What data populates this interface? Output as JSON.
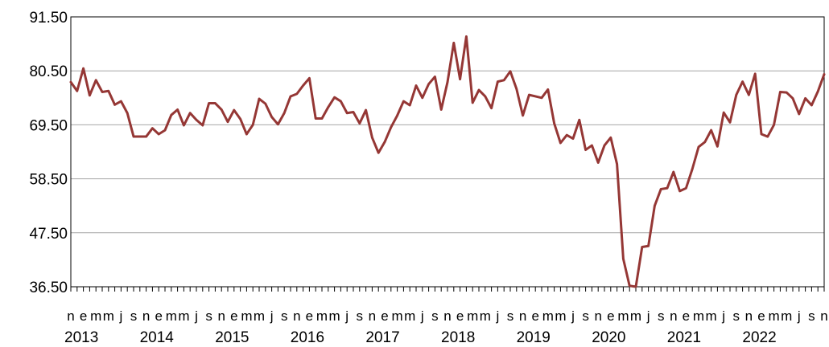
{
  "chart_data": {
    "type": "line",
    "title": "",
    "xlabel": "",
    "ylabel": "",
    "ylim": [
      36.5,
      91.5
    ],
    "y_ticks": [
      "36.50",
      "47.50",
      "58.50",
      "69.50",
      "80.50",
      "91.50"
    ],
    "grid": "horizontal",
    "legend": "none",
    "x_month_labels": [
      "n",
      "e",
      "m",
      "m",
      "j",
      "s",
      "n",
      "e",
      "m",
      "m",
      "j",
      "s",
      "n",
      "e",
      "m",
      "m",
      "j",
      "s",
      "n",
      "e",
      "m",
      "m",
      "j",
      "s",
      "n",
      "e",
      "m",
      "m",
      "j",
      "s",
      "n",
      "e",
      "m",
      "m",
      "j",
      "s",
      "n",
      "e",
      "m",
      "m",
      "j",
      "s",
      "n",
      "e",
      "m",
      "m",
      "j",
      "s",
      "n",
      "e",
      "m",
      "m",
      "j",
      "s",
      "n",
      "e",
      "m",
      "m",
      "j",
      "s",
      "n"
    ],
    "x_year_labels": [
      "2013",
      "2014",
      "2015",
      "2016",
      "2017",
      "2018",
      "2019",
      "2020",
      "2021",
      "2022"
    ],
    "x_start": "2012-11",
    "x_end": "2022-11",
    "series": [
      {
        "name": "",
        "color": "#953735",
        "values": [
          78.2,
          76.4,
          81.0,
          75.5,
          78.6,
          76.2,
          76.4,
          73.6,
          74.3,
          71.9,
          67.1,
          67.1,
          67.1,
          68.8,
          67.6,
          68.4,
          71.5,
          72.6,
          69.4,
          71.9,
          70.5,
          69.4,
          73.9,
          73.9,
          72.6,
          70.1,
          72.5,
          70.7,
          67.6,
          69.5,
          74.8,
          73.8,
          71.1,
          69.6,
          71.9,
          75.3,
          75.8,
          77.5,
          79.0,
          70.8,
          70.8,
          73.1,
          75.1,
          74.3,
          71.9,
          72.1,
          69.8,
          72.5,
          66.9,
          63.8,
          66.0,
          69.0,
          71.4,
          74.3,
          73.5,
          77.5,
          75.0,
          77.8,
          79.3,
          72.6,
          78.2,
          86.2,
          78.8,
          87.5,
          74.0,
          76.6,
          75.3,
          72.9,
          78.3,
          78.6,
          80.4,
          76.8,
          71.4,
          75.6,
          75.3,
          75.0,
          76.7,
          69.8,
          65.8,
          67.4,
          66.7,
          70.5,
          64.4,
          65.3,
          61.8,
          65.3,
          66.9,
          61.5,
          42.2,
          36.7,
          36.5,
          44.6,
          44.8,
          53.0,
          56.4,
          56.6,
          59.9,
          56.0,
          56.6,
          60.5,
          65.0,
          66.0,
          68.4,
          65.1,
          72.0,
          70.0,
          75.6,
          78.3,
          75.6,
          79.9,
          67.6,
          67.1,
          69.5,
          76.2,
          76.1,
          74.9,
          71.7,
          74.9,
          73.5,
          76.3,
          79.8
        ]
      }
    ]
  }
}
